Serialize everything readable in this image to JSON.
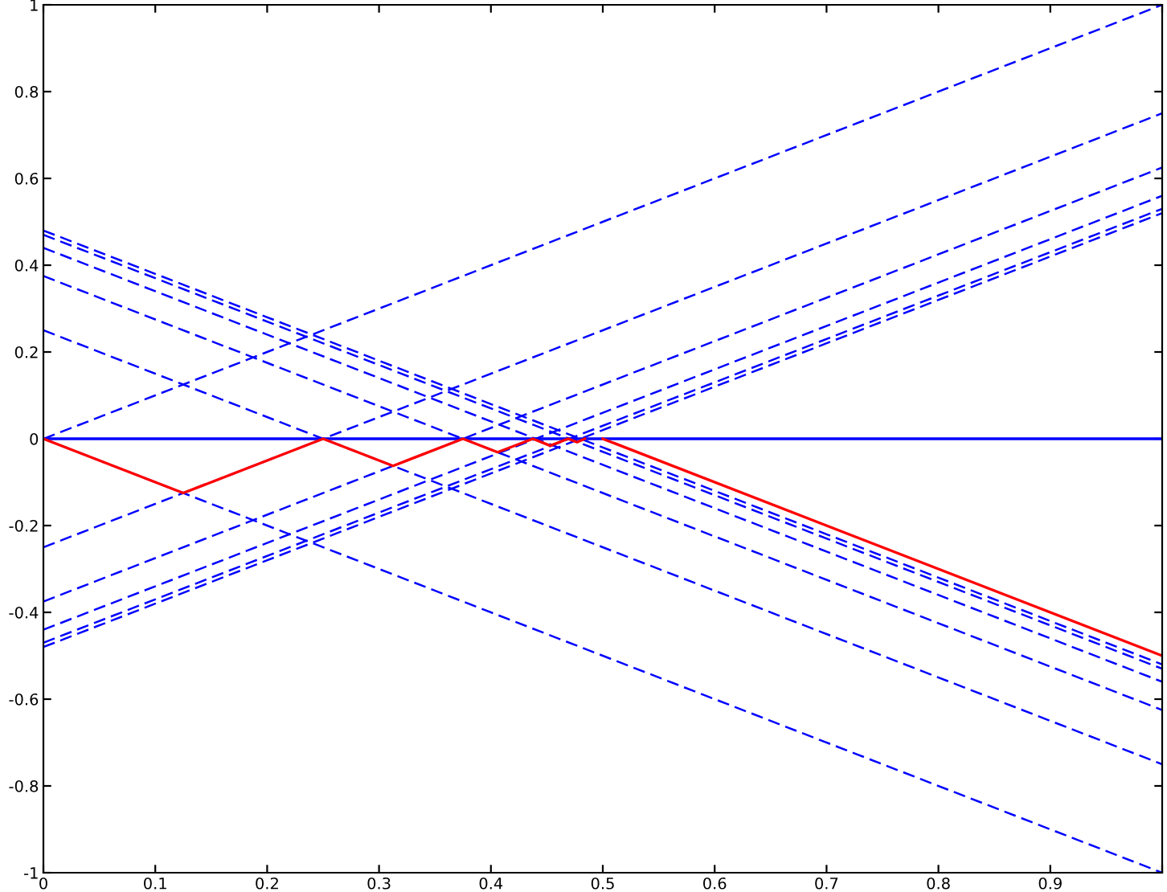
{
  "chart_data": {
    "type": "line",
    "xlim": [
      0,
      1
    ],
    "ylim": [
      -1,
      1
    ],
    "xticks": [
      0,
      0.1,
      0.2,
      0.3,
      0.4,
      0.5,
      0.6,
      0.7,
      0.8,
      0.9,
      {
        "value": 1,
        "label": null
      }
    ],
    "yticks": [
      -1,
      -0.8,
      -0.6,
      -0.4,
      -0.2,
      0,
      0.2,
      0.4,
      0.6,
      0.8,
      1
    ],
    "grid": false,
    "legend": false,
    "marker": "none",
    "series": [
      {
        "color": "#0000ff",
        "line_style": "dashed",
        "x": [
          0,
          1
        ],
        "values": [
          0,
          1
        ]
      },
      {
        "color": "#0000ff",
        "line_style": "dashed",
        "x": [
          0,
          1
        ],
        "values": [
          -0.25,
          0.75
        ]
      },
      {
        "color": "#0000ff",
        "line_style": "dashed",
        "x": [
          0,
          1
        ],
        "values": [
          -0.375,
          0.625
        ]
      },
      {
        "color": "#0000ff",
        "line_style": "dashed",
        "x": [
          0,
          1
        ],
        "values": [
          -0.44,
          0.56
        ]
      },
      {
        "color": "#0000ff",
        "line_style": "dashed",
        "x": [
          0,
          1
        ],
        "values": [
          -0.47,
          0.53
        ]
      },
      {
        "color": "#0000ff",
        "line_style": "dashed",
        "x": [
          0,
          1
        ],
        "values": [
          -0.48,
          0.52
        ]
      },
      {
        "color": "#0000ff",
        "line_style": "dashed",
        "x": [
          0,
          1
        ],
        "values": [
          0,
          -1
        ]
      },
      {
        "color": "#0000ff",
        "line_style": "dashed",
        "x": [
          0,
          1
        ],
        "values": [
          0.25,
          -0.75
        ]
      },
      {
        "color": "#0000ff",
        "line_style": "dashed",
        "x": [
          0,
          1
        ],
        "values": [
          0.375,
          -0.625
        ]
      },
      {
        "color": "#0000ff",
        "line_style": "dashed",
        "x": [
          0,
          1
        ],
        "values": [
          0.44,
          -0.56
        ]
      },
      {
        "color": "#0000ff",
        "line_style": "dashed",
        "x": [
          0,
          1
        ],
        "values": [
          0.47,
          -0.53
        ]
      },
      {
        "color": "#0000ff",
        "line_style": "dashed",
        "x": [
          0,
          1
        ],
        "values": [
          0.48,
          -0.52
        ]
      },
      {
        "color": "#0000ff",
        "line_style": "solid",
        "x": [
          0,
          1
        ],
        "values": [
          0,
          0
        ]
      },
      {
        "color": "#ff0000",
        "line_style": "solid",
        "x": [
          0,
          0.125,
          0.25,
          0.3125,
          0.375,
          0.406,
          0.4375,
          0.453,
          0.469,
          0.477,
          0.484
        ],
        "values": [
          0,
          -0.125,
          0,
          -0.0625,
          0,
          -0.031,
          0,
          -0.016,
          0,
          -0.008,
          0
        ]
      },
      {
        "color": "#ff0000",
        "line_style": "solid",
        "x": [
          0.5,
          1
        ],
        "values": [
          0,
          -0.5
        ]
      }
    ]
  }
}
